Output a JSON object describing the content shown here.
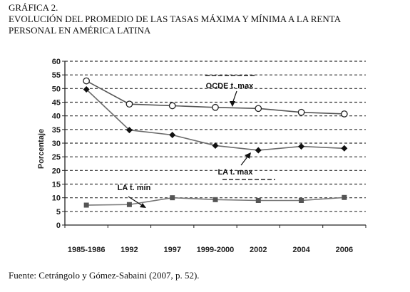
{
  "heading": {
    "label": "GRÁFICA 2.",
    "line1": "EVOLUCIÓN DEL PROMEDIO DE LAS TASAS MÁXIMA Y MÍNIMA A LA RENTA",
    "line2": "PERSONAL EN AMÉRICA LATINA"
  },
  "source": "Fuente: Cetrángolo y Gómez-Sabaini (2007, p. 52).",
  "chart_data": {
    "type": "line",
    "title": "EVOLUCIÓN DEL PROMEDIO DE LAS TASAS MÁXIMA Y MÍNIMA A LA RENTA PERSONAL EN AMÉRICA LATINA",
    "xlabel": "",
    "ylabel": "Porcentaje",
    "categories": [
      "1985-1986",
      "1992",
      "1997",
      "1999-2000",
      "2002",
      "2004",
      "2006"
    ],
    "ylim": [
      0,
      60
    ],
    "ytick_step": 5,
    "grid": "horizontal dashed",
    "series": [
      {
        "name": "OCDE t. max",
        "marker": "open-circle",
        "color": "#555555",
        "values": [
          52.8,
          44.3,
          43.7,
          43.1,
          42.7,
          41.3,
          40.7
        ]
      },
      {
        "name": "LA t. max",
        "marker": "diamond",
        "color": "#6b6b6b",
        "values": [
          49.7,
          34.8,
          33.0,
          29.1,
          27.4,
          28.8,
          28.1
        ]
      },
      {
        "name": "LA t. min",
        "marker": "square",
        "color": "#777777",
        "values": [
          7.3,
          7.5,
          10.0,
          9.3,
          9.0,
          9.0,
          10.1
        ]
      }
    ]
  }
}
